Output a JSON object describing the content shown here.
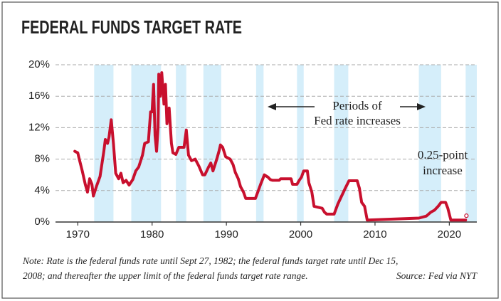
{
  "chart_data": {
    "type": "line",
    "title": "FEDERAL FUNDS TARGET RATE",
    "color": "#c8102e",
    "shade_color": "#d5eefa",
    "grid": true,
    "xlim": [
      1967,
      2023.7
    ],
    "ylim": [
      0,
      20
    ],
    "xticks": [
      1970,
      1980,
      1990,
      2000,
      2010,
      2020
    ],
    "yticks": [
      {
        "value": 0,
        "label": "0%"
      },
      {
        "value": 4,
        "label": "4%"
      },
      {
        "value": 8,
        "label": "8%"
      },
      {
        "value": 12,
        "label": "12%"
      },
      {
        "value": 16,
        "label": "16%"
      },
      {
        "value": 20,
        "label": "20%"
      }
    ],
    "shaded_periods": [
      [
        1972.2,
        1974.8
      ],
      [
        1977.2,
        1981.2
      ],
      [
        1983.2,
        1984.6
      ],
      [
        1986.9,
        1989.3
      ],
      [
        1994.0,
        1995.0
      ],
      [
        1999.5,
        2000.4
      ],
      [
        2004.5,
        2006.4
      ],
      [
        2015.9,
        2018.9
      ],
      [
        2022.2,
        2023.7
      ]
    ],
    "x": [
      1969.6,
      1970.0,
      1970.2,
      1970.6,
      1971.0,
      1971.3,
      1971.6,
      1971.9,
      1972.1,
      1972.5,
      1973.0,
      1973.5,
      1973.7,
      1974.0,
      1974.2,
      1974.5,
      1974.8,
      1975.1,
      1975.5,
      1975.8,
      1976.1,
      1976.5,
      1976.9,
      1977.4,
      1977.8,
      1978.2,
      1978.7,
      1979.0,
      1979.5,
      1979.8,
      1980.0,
      1980.2,
      1980.4,
      1980.6,
      1980.8,
      1980.9,
      1981.1,
      1981.3,
      1981.6,
      1981.8,
      1982.0,
      1982.3,
      1982.6,
      1982.8,
      1983.2,
      1983.6,
      1984.3,
      1984.6,
      1984.9,
      1985.3,
      1985.8,
      1986.3,
      1986.8,
      1987.1,
      1987.6,
      1987.9,
      1988.2,
      1988.7,
      1989.0,
      1989.2,
      1989.5,
      1989.9,
      1990.5,
      1990.9,
      1991.2,
      1991.6,
      1991.9,
      1992.3,
      1992.6,
      1993.9,
      1994.3,
      1994.6,
      1994.9,
      1995.1,
      1995.6,
      1995.9,
      1996.2,
      1997.1,
      1997.3,
      1998.7,
      1998.9,
      1999.5,
      1999.8,
      2000.1,
      2000.4,
      2000.9,
      2001.1,
      2001.5,
      2001.8,
      2002.9,
      2003.2,
      2003.5,
      2004.5,
      2005.0,
      2005.5,
      2006.0,
      2006.5,
      2007.6,
      2007.9,
      2008.2,
      2008.6,
      2008.95,
      2015.9,
      2016.9,
      2017.5,
      2018.0,
      2018.5,
      2018.9,
      2019.5,
      2019.8,
      2020.2,
      2022.2
    ],
    "values": [
      9,
      8.8,
      8,
      6.5,
      4.8,
      3.8,
      5.5,
      4.8,
      3.3,
      4.5,
      5.8,
      9,
      10.5,
      10,
      10.8,
      13,
      10,
      6.2,
      5.5,
      6.2,
      5,
      5.3,
      4.7,
      5.4,
      6.5,
      7,
      8.5,
      10,
      10.2,
      14,
      14,
      17.5,
      11,
      9,
      12,
      18.8,
      16,
      19,
      15,
      17.5,
      12.5,
      14.5,
      10,
      8.8,
      8.6,
      9.5,
      9.5,
      11.7,
      8.5,
      7.8,
      8,
      7.1,
      6,
      6,
      7,
      7.5,
      6.5,
      8,
      9,
      9.8,
      9.5,
      8.3,
      8,
      7.3,
      6.3,
      5.5,
      4.5,
      3.8,
      3,
      3,
      4,
      4.8,
      5.5,
      6,
      5.7,
      5.4,
      5.3,
      5.3,
      5.5,
      5.5,
      4.8,
      4.8,
      5.3,
      5.7,
      6.5,
      6.5,
      5,
      3.8,
      2,
      1.75,
      1.25,
      1,
      1,
      2.3,
      3.3,
      4.3,
      5.25,
      5.25,
      4.3,
      2.5,
      2,
      0.25,
      0.5,
      0.75,
      1.25,
      1.5,
      2,
      2.5,
      2.5,
      1.75,
      0.25,
      0.25
    ],
    "highlight_point": {
      "x": 2022.3,
      "y": 0.8
    },
    "annotations": {
      "periods": [
        "Periods of",
        "Fed rate increases"
      ],
      "increase": [
        "0.25-point",
        "increase"
      ]
    },
    "note": [
      "Note: Rate is the federal funds rate until Sept 27, 1982; the federal funds target rate until Dec 15,",
      "2008; and thereafter the upper limit of the federal funds target rate range."
    ],
    "source": "Source: Fed via NYT"
  }
}
